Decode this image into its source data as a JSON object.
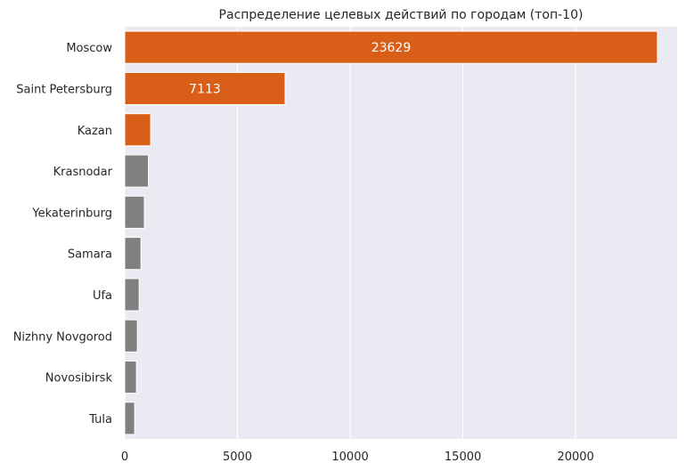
{
  "chart_data": {
    "type": "bar",
    "orientation": "horizontal",
    "title": "Распределение целевых действий по городам (топ-10)",
    "xlabel": "",
    "ylabel": "",
    "categories": [
      "Moscow",
      "Saint Petersburg",
      "Kazan",
      "Krasnodar",
      "Yekaterinburg",
      "Samara",
      "Ufa",
      "Nizhny Novgorod",
      "Novosibirsk",
      "Tula"
    ],
    "values": [
      23629,
      7113,
      1150,
      1050,
      870,
      720,
      640,
      560,
      520,
      440
    ],
    "data_labels": [
      "23629",
      "7113",
      "",
      "",
      "",
      "",
      "",
      "",
      "",
      ""
    ],
    "highlight_count": 3,
    "colors": {
      "highlight": "#d95f19",
      "default": "#808080",
      "background": "#eaeaf2",
      "grid": "#ffffff"
    },
    "xlim": [
      0,
      24500
    ],
    "xticks": [
      0,
      5000,
      10000,
      15000,
      20000
    ],
    "xtick_labels": [
      "0",
      "5000",
      "10000",
      "15000",
      "20000"
    ],
    "grid": true,
    "legend": "none"
  }
}
